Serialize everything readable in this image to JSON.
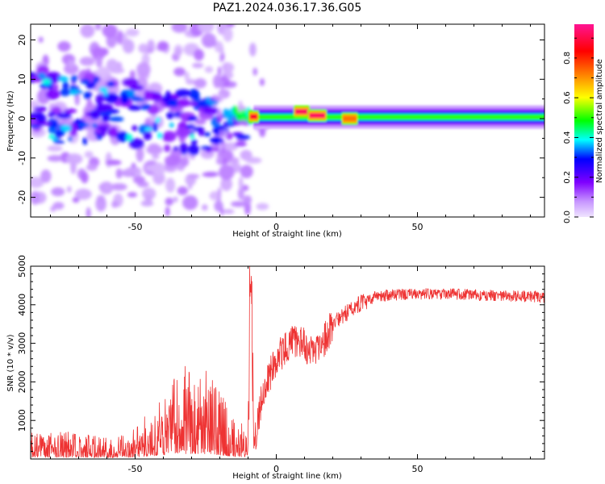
{
  "page": {
    "title": "PAZ1.2024.036.17.36.G05"
  },
  "chart_data": [
    {
      "type": "heatmap",
      "name": "spectrogram",
      "xlabel": "Height of straight line (km)",
      "ylabel": "Frequency (Hz)",
      "xlim": [
        -87,
        95
      ],
      "ylim": [
        -25,
        24
      ],
      "xticks": [
        -50,
        0,
        50
      ],
      "yticks": [
        20,
        10,
        0,
        -10,
        -20
      ],
      "colorbar": {
        "label": "Normalized spectral amplitude",
        "range": [
          0.0,
          0.97
        ],
        "ticks": [
          0.0,
          0.2,
          0.4,
          0.6,
          0.8
        ],
        "colormap": [
          "#f0e4ff",
          "#c796ff",
          "#7f00ff",
          "#0000ff",
          "#00ffff",
          "#00ff00",
          "#ffff00",
          "#ff7f00",
          "#ff0000",
          "#ff1493"
        ]
      },
      "features": {
        "steady_band": {
          "x_range": [
            -8,
            95
          ],
          "center_frequency": 0.4,
          "half_width": 1.2
        },
        "peak_segments": [
          {
            "x": [
              -9,
              -7
            ],
            "frequency": 0.5,
            "amplitude": 0.9
          },
          {
            "x": [
              7,
              11
            ],
            "frequency": 1.8,
            "amplitude": 0.95
          },
          {
            "x": [
              12,
              17
            ],
            "frequency": 0.8,
            "amplitude": 0.95
          },
          {
            "x": [
              24,
              28
            ],
            "frequency": 0.0,
            "amplitude": 0.75
          }
        ],
        "scattered_region": {
          "x_range": [
            -87,
            -10
          ],
          "frequency_range": [
            -24,
            20
          ]
        }
      }
    },
    {
      "type": "line",
      "name": "snr",
      "xlabel": "Height of straight line (km)",
      "ylabel": "SNR (10 * v/v)",
      "xlim": [
        -87,
        95
      ],
      "ylim": [
        0,
        5000
      ],
      "xticks": [
        -50,
        0,
        50
      ],
      "yticks": [
        1000,
        2000,
        3000,
        4000,
        5000
      ],
      "color": "#ee3333",
      "envelope": {
        "x": [
          -87,
          -70,
          -60,
          -55,
          -50,
          -45,
          -40,
          -35,
          -30,
          -25,
          -20,
          -15,
          -10,
          -9,
          -8,
          -5,
          0,
          5,
          10,
          13,
          15,
          18,
          20,
          25,
          30,
          35,
          40,
          50,
          60,
          70,
          80,
          95
        ],
        "y": [
          250,
          260,
          200,
          220,
          300,
          450,
          650,
          850,
          900,
          850,
          650,
          400,
          300,
          5000,
          250,
          1700,
          2600,
          3000,
          3000,
          2700,
          2850,
          3200,
          3500,
          3800,
          4050,
          4200,
          4250,
          4280,
          4280,
          4250,
          4230,
          4200
        ]
      }
    }
  ]
}
